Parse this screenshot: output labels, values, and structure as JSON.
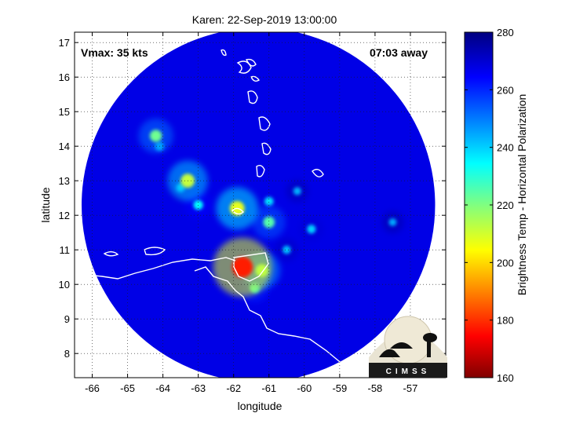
{
  "title": "Karen: 22-Sep-2019 13:00:00",
  "vmax_label": "Vmax: 35 kts",
  "away_label": "07:03 away",
  "logo_text": "CIMSS",
  "chart_data": {
    "type": "heatmap",
    "title": "Karen: 22-Sep-2019 13:00:00",
    "xlabel": "longitude",
    "ylabel": "latitude",
    "xlim": [
      -66.5,
      -56
    ],
    "ylim": [
      7.3,
      17.3
    ],
    "x_ticks": [
      -66,
      -65,
      -64,
      -63,
      -62,
      -61,
      -60,
      -59,
      -58,
      -57
    ],
    "y_ticks": [
      8,
      9,
      10,
      11,
      12,
      13,
      14,
      15,
      16,
      17
    ],
    "grid": true,
    "colorbar": {
      "label": "Brightness Temp - Horizontal Polarization",
      "range": [
        160,
        280
      ],
      "ticks": [
        160,
        180,
        200,
        220,
        240,
        260,
        280
      ],
      "colormap": "jet"
    },
    "swath": {
      "center": [
        -61.3,
        12.3
      ],
      "radius_deg": 5.0,
      "background_tb": 268
    },
    "features": [
      {
        "lon": -61.75,
        "lat": 10.5,
        "tb": 178
      },
      {
        "lon": -61.9,
        "lat": 12.2,
        "tb": 208
      },
      {
        "lon": -63.3,
        "lat": 13.0,
        "tb": 212
      },
      {
        "lon": -64.2,
        "lat": 14.3,
        "tb": 222
      },
      {
        "lon": -61.0,
        "lat": 11.8,
        "tb": 225
      },
      {
        "lon": -61.2,
        "lat": 10.4,
        "tb": 218
      },
      {
        "lon": -61.4,
        "lat": 9.9,
        "tb": 232
      },
      {
        "lon": -61.0,
        "lat": 12.4,
        "tb": 238
      },
      {
        "lon": -59.8,
        "lat": 11.6,
        "tb": 240
      },
      {
        "lon": -64.1,
        "lat": 14.0,
        "tb": 238
      },
      {
        "lon": -63.0,
        "lat": 12.3,
        "tb": 235
      },
      {
        "lon": -60.2,
        "lat": 12.7,
        "tb": 244
      },
      {
        "lon": -57.5,
        "lat": 11.8,
        "tb": 245
      },
      {
        "lon": -63.5,
        "lat": 12.8,
        "tb": 240
      },
      {
        "lon": -60.5,
        "lat": 11.0,
        "tb": 242
      }
    ]
  }
}
